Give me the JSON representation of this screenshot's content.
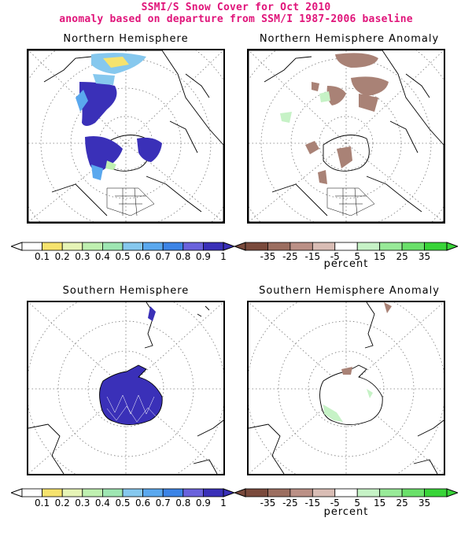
{
  "header": {
    "line1": "SSMI/S Snow Cover for Oct 2010",
    "line2": "anomaly based on departure from SSM/I 1987-2006 baseline"
  },
  "panels": {
    "nh": "Northern Hemisphere",
    "nha": "Northern Hemisphere Anomaly",
    "sh": "Southern Hemisphere",
    "sha": "Southern Hemisphere Anomaly"
  },
  "colorbars": {
    "cover": {
      "ticks": [
        "0.1",
        "0.2",
        "0.3",
        "0.4",
        "0.5",
        "0.6",
        "0.7",
        "0.8",
        "0.9",
        "1"
      ],
      "colors": [
        "#ffffff",
        "#f6e36e",
        "#e6f4b6",
        "#bff0b0",
        "#9ee6b2",
        "#86c8ee",
        "#5aa8ee",
        "#3c84e6",
        "#6a62dc",
        "#3a30b8"
      ]
    },
    "anomaly": {
      "ticks": [
        "-35",
        "-25",
        "-15",
        "-5",
        "5",
        "15",
        "25",
        "35"
      ],
      "unit": "percent",
      "colors": [
        "#7a4a3c",
        "#9c6e60",
        "#bb9086",
        "#d9bdb5",
        "#ffffff",
        "#c6f2c6",
        "#98ea98",
        "#6ae06a",
        "#38d438"
      ]
    }
  },
  "colors": {
    "title": "#e0147a",
    "snow_full": "#3a30b8",
    "snow_deficit": "#a98276",
    "snow_surplus": "#bff0b0"
  }
}
